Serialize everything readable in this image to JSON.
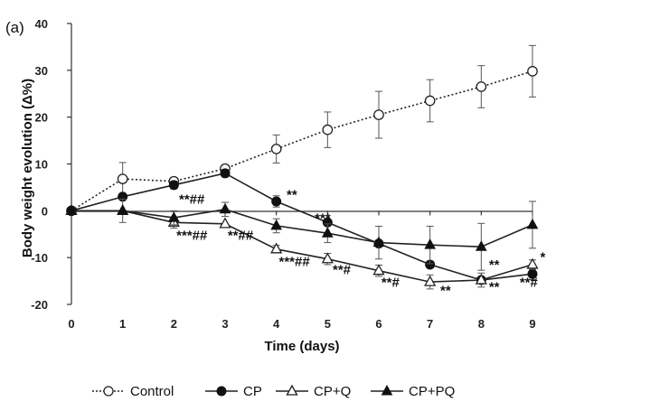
{
  "chart_data": {
    "type": "line",
    "panel_label": "(a)",
    "xlabel": "Time (days)",
    "ylabel": "Body weight evolution (Δ%)",
    "x": [
      0,
      1,
      2,
      3,
      4,
      5,
      6,
      7,
      8,
      9
    ],
    "xlim": [
      0,
      9
    ],
    "ylim": [
      -20,
      40
    ],
    "yticks": [
      -20,
      -10,
      0,
      10,
      20,
      30,
      40
    ],
    "grid": false,
    "legend_position": "bottom",
    "series": [
      {
        "name": "Control",
        "marker": "open-circle",
        "line": "dotted",
        "values": [
          0,
          6.8,
          6.3,
          9.0,
          13.2,
          17.3,
          20.5,
          23.5,
          26.5,
          29.8
        ],
        "errors": [
          0,
          3.5,
          0.8,
          0.8,
          3.0,
          3.8,
          5.0,
          4.5,
          4.5,
          5.5
        ]
      },
      {
        "name": "CP",
        "marker": "filled-circle",
        "line": "solid",
        "values": [
          0,
          3.0,
          5.5,
          8.0,
          2.0,
          -2.5,
          -7.0,
          -11.5,
          -14.8,
          -13.5
        ],
        "errors": [
          0,
          0,
          0.8,
          0.8,
          1.2,
          0,
          0,
          0,
          0,
          1.2
        ]
      },
      {
        "name": "CP+Q",
        "marker": "open-triangle",
        "line": "solid",
        "values": [
          0,
          0,
          -2.5,
          -2.8,
          -8.2,
          -10.3,
          -12.8,
          -15.2,
          -14.8,
          -11.5
        ],
        "errors": [
          0,
          0,
          1.2,
          0,
          0.8,
          1.2,
          1.2,
          1.5,
          1.5,
          1.0
        ]
      },
      {
        "name": "CP+PQ",
        "marker": "filled-triangle",
        "line": "solid",
        "values": [
          0,
          0,
          -1.5,
          0.3,
          -3.2,
          -4.8,
          -6.8,
          -7.3,
          -7.7,
          -3.0
        ],
        "errors": [
          0,
          2.5,
          1.5,
          1.5,
          1.5,
          2.0,
          3.5,
          4.0,
          5.0,
          5.0
        ]
      }
    ],
    "annotations": [
      {
        "text": "**",
        "x": 4.2,
        "y": 2.5
      },
      {
        "text": "**##",
        "x": 2.1,
        "y": 1.5
      },
      {
        "text": "***",
        "x": 4.75,
        "y": -2.5
      },
      {
        "text": "***##",
        "x": 2.05,
        "y": -6.2
      },
      {
        "text": "**##",
        "x": 3.05,
        "y": -6.2
      },
      {
        "text": "***##",
        "x": 4.05,
        "y": -11.8
      },
      {
        "text": "**#",
        "x": 5.1,
        "y": -13.5
      },
      {
        "text": "**#",
        "x": 6.05,
        "y": -16.2
      },
      {
        "text": "**",
        "x": 7.2,
        "y": -18.0
      },
      {
        "text": "**",
        "x": 8.15,
        "y": -12.5
      },
      {
        "text": "**",
        "x": 8.15,
        "y": -17.2
      },
      {
        "text": "*",
        "x": 9.15,
        "y": -10.8
      },
      {
        "text": "**#",
        "x": 8.75,
        "y": -16.2
      }
    ]
  }
}
